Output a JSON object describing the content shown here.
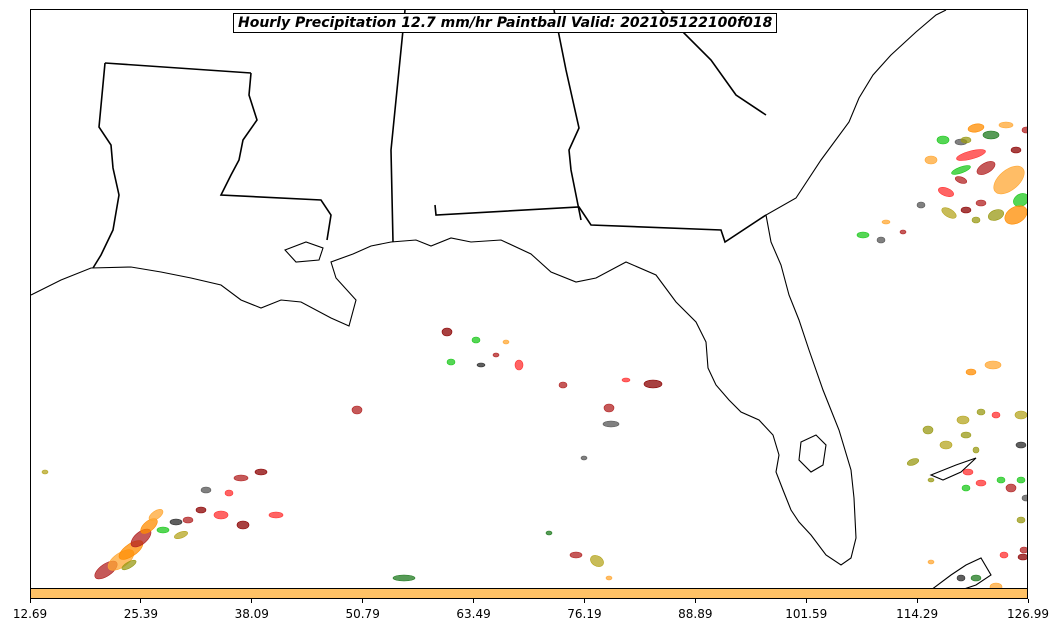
{
  "title": "Hourly Precipitation 12.7 mm/hr Paintball Valid: 202105122100f018",
  "colorbar": {
    "color": "#ffc266",
    "tick_labels": [
      "12.69",
      "25.39",
      "38.09",
      "50.79",
      "63.49",
      "76.19",
      "88.89",
      "101.59",
      "114.29",
      "126.99"
    ]
  },
  "member_colors": [
    "#ff8c00",
    "#ffa733",
    "#8b0000",
    "#b22222",
    "#ff3030",
    "#2a2a2a",
    "#555555",
    "#1cc81c",
    "#1f7a1f",
    "#9a9a15",
    "#b5a520"
  ],
  "map": {
    "region": "US Gulf Coast and Southeast",
    "features": [
      "coastline",
      "state-borders"
    ]
  }
}
